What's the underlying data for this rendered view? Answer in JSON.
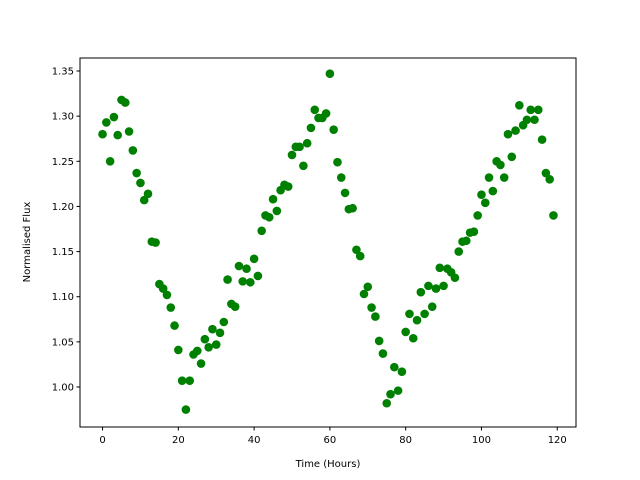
{
  "chart_data": {
    "type": "scatter",
    "xlabel": "Time (Hours)",
    "ylabel": "Normalised Flux",
    "color": "#008000",
    "x": [
      0,
      1,
      2,
      3,
      4,
      5,
      6,
      7,
      8,
      9,
      10,
      11,
      12,
      13,
      14,
      15,
      16,
      17,
      18,
      19,
      20,
      21,
      22,
      23,
      24,
      25,
      26,
      27,
      28,
      29,
      30,
      31,
      32,
      33,
      34,
      35,
      36,
      37,
      38,
      39,
      40,
      41,
      42,
      43,
      44,
      45,
      46,
      47,
      48,
      49,
      50,
      51,
      52,
      53,
      54,
      55,
      56,
      57,
      58,
      59,
      60,
      61,
      62,
      63,
      64,
      65,
      66,
      67,
      68,
      69,
      70,
      71,
      72,
      73,
      74,
      75,
      76,
      77,
      78,
      79,
      80,
      81,
      82,
      83,
      84,
      85,
      86,
      87,
      88,
      89,
      90,
      91,
      92,
      93,
      94,
      95,
      96,
      97,
      98,
      99,
      100,
      101,
      102,
      103,
      104,
      105,
      106,
      107,
      108,
      109,
      110,
      111,
      112,
      113,
      114,
      115,
      116,
      117,
      118,
      119
    ],
    "y": [
      1.28,
      1.293,
      1.25,
      1.299,
      1.279,
      1.318,
      1.315,
      1.283,
      1.262,
      1.237,
      1.226,
      1.207,
      1.214,
      1.161,
      1.16,
      1.114,
      1.109,
      1.102,
      1.088,
      1.068,
      1.041,
      1.007,
      0.975,
      1.007,
      1.036,
      1.04,
      1.026,
      1.053,
      1.044,
      1.064,
      1.047,
      1.06,
      1.072,
      1.119,
      1.092,
      1.089,
      1.134,
      1.117,
      1.131,
      1.116,
      1.142,
      1.123,
      1.173,
      1.19,
      1.188,
      1.208,
      1.195,
      1.218,
      1.224,
      1.222,
      1.257,
      1.266,
      1.266,
      1.245,
      1.27,
      1.287,
      1.307,
      1.298,
      1.298,
      1.303,
      1.347,
      1.285,
      1.249,
      1.232,
      1.215,
      1.197,
      1.198,
      1.152,
      1.145,
      1.103,
      1.111,
      1.088,
      1.078,
      1.051,
      1.037,
      0.982,
      0.992,
      1.022,
      0.996,
      1.017,
      1.061,
      1.081,
      1.054,
      1.074,
      1.105,
      1.081,
      1.112,
      1.089,
      1.109,
      1.132,
      1.112,
      1.131,
      1.127,
      1.121,
      1.15,
      1.161,
      1.162,
      1.171,
      1.172,
      1.19,
      1.213,
      1.204,
      1.232,
      1.217,
      1.25,
      1.246,
      1.232,
      1.28,
      1.255,
      1.284,
      1.312,
      1.29,
      1.296,
      1.307,
      1.296,
      1.307,
      1.274,
      1.237,
      1.23,
      1.19
    ],
    "xlim": [
      -5.95,
      124.95
    ],
    "ylim": [
      0.9557,
      1.3644
    ],
    "xticks": [
      0,
      20,
      40,
      60,
      80,
      100,
      120
    ],
    "yticks": [
      {
        "value": 1.0,
        "label": "1.00"
      },
      1.05,
      {
        "value": 1.1,
        "label": "1.10"
      },
      1.15,
      {
        "value": 1.2,
        "label": "1.20"
      },
      1.25,
      {
        "value": 1.3,
        "label": "1.30"
      },
      1.35
    ]
  }
}
